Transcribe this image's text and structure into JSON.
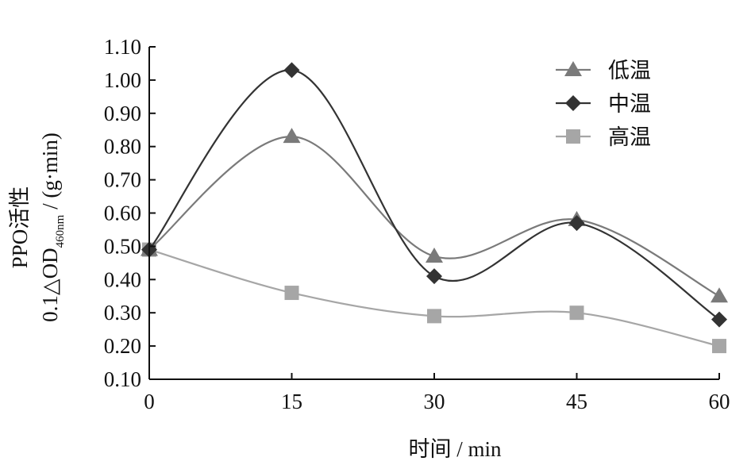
{
  "chart_data": {
    "type": "line",
    "x": [
      0,
      15,
      30,
      45,
      60
    ],
    "xlabel": "时间 / min",
    "ylabel_line1": "PPO活性",
    "ylabel_line2_prefix": "0.1△OD",
    "ylabel_line2_sub": "460nm",
    "ylabel_line2_suffix": " / (g·min)",
    "ylim": [
      0.1,
      1.1
    ],
    "yticks": [
      "0.10",
      "0.20",
      "0.30",
      "0.40",
      "0.50",
      "0.60",
      "0.70",
      "0.80",
      "0.90",
      "1.00",
      "1.10"
    ],
    "xticks": [
      "0",
      "15",
      "30",
      "45",
      "60"
    ],
    "legend_position": "top-right",
    "grid": false,
    "series": [
      {
        "name": "低温",
        "marker": "triangle",
        "color": "#7a7a7a",
        "values": [
          0.49,
          0.83,
          0.47,
          0.58,
          0.35
        ]
      },
      {
        "name": "中温",
        "marker": "diamond",
        "color": "#333333",
        "values": [
          0.49,
          1.03,
          0.41,
          0.57,
          0.28
        ]
      },
      {
        "name": "高温",
        "marker": "square",
        "color": "#a6a6a6",
        "values": [
          0.49,
          0.36,
          0.29,
          0.3,
          0.2
        ]
      }
    ]
  }
}
